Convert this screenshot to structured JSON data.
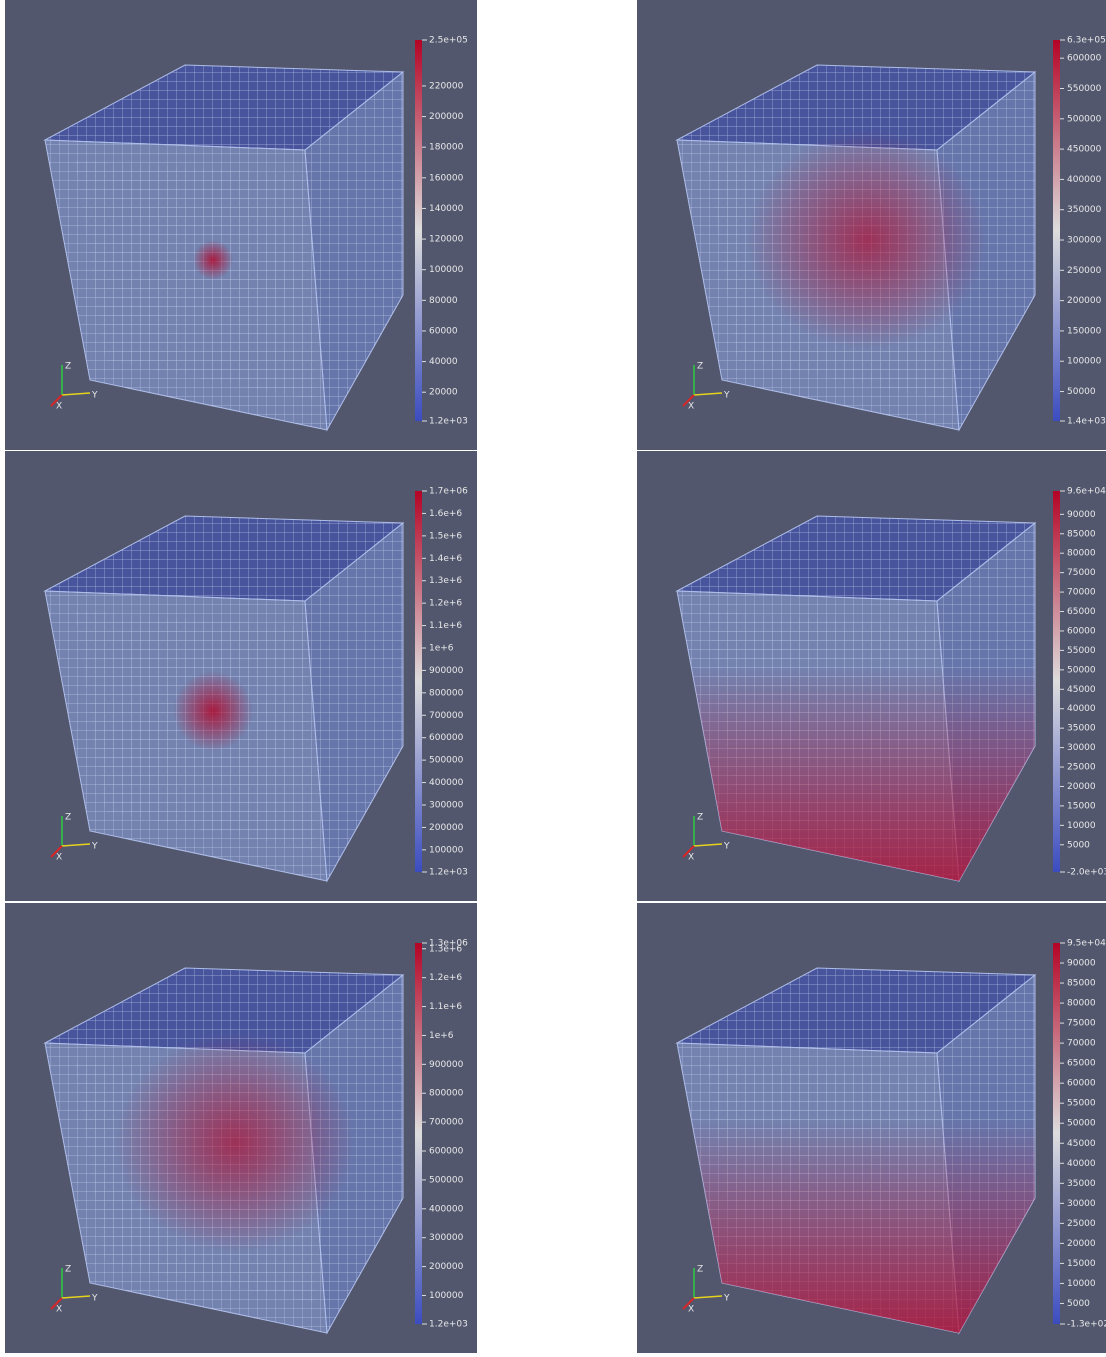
{
  "triad": {
    "x": "X",
    "y": "Y",
    "z": "Z"
  },
  "panels": [
    {
      "colorbar": {
        "min": {
          "value": 1200,
          "label": "1.2e+03"
        },
        "max": {
          "value": 250000,
          "label": "2.5e+05"
        },
        "ticks": [
          20000,
          40000,
          60000,
          80000,
          100000,
          120000,
          140000,
          160000,
          180000,
          200000,
          220000
        ]
      }
    },
    {
      "colorbar": {
        "min": {
          "value": 1400,
          "label": "1.4e+03"
        },
        "max": {
          "value": 630000,
          "label": "6.3e+05"
        },
        "ticks": [
          50000,
          100000,
          150000,
          200000,
          250000,
          300000,
          350000,
          400000,
          450000,
          500000,
          550000,
          600000
        ]
      }
    },
    {
      "colorbar": {
        "min": {
          "value": 1200,
          "label": "1.2e+03"
        },
        "max": {
          "value": 1700000,
          "label": "1.7e+06"
        },
        "ticks": [
          100000,
          200000,
          300000,
          400000,
          500000,
          600000,
          700000,
          800000,
          900000,
          {
            "value": 1000000,
            "label": "1e+6"
          },
          {
            "value": 1100000,
            "label": "1.1e+6"
          },
          {
            "value": 1200000,
            "label": "1.2e+6"
          },
          {
            "value": 1300000,
            "label": "1.3e+6"
          },
          {
            "value": 1400000,
            "label": "1.4e+6"
          },
          {
            "value": 1500000,
            "label": "1.5e+6"
          },
          {
            "value": 1600000,
            "label": "1.6e+6"
          }
        ]
      }
    },
    {
      "colorbar": {
        "min": {
          "value": -2000,
          "label": "-2.0e+03"
        },
        "max": {
          "value": 96000,
          "label": "9.6e+04"
        },
        "ticks": [
          5000,
          10000,
          15000,
          20000,
          25000,
          30000,
          35000,
          40000,
          45000,
          50000,
          55000,
          60000,
          65000,
          70000,
          75000,
          80000,
          85000,
          90000
        ]
      }
    },
    {
      "colorbar": {
        "min": {
          "value": 1200,
          "label": "1.2e+03"
        },
        "max": {
          "value": 1320000,
          "label": "1.3e+06"
        },
        "ticks": [
          100000,
          200000,
          300000,
          400000,
          500000,
          600000,
          700000,
          800000,
          900000,
          {
            "value": 1000000,
            "label": "1e+6"
          },
          {
            "value": 1100000,
            "label": "1.1e+6"
          },
          {
            "value": 1200000,
            "label": "1.2e+6"
          },
          {
            "value": 1300000,
            "label": "1.3e+6"
          }
        ]
      }
    },
    {
      "colorbar": {
        "min": {
          "value": -130,
          "label": "-1.3e+02"
        },
        "max": {
          "value": 95000,
          "label": "9.5e+04"
        },
        "ticks": [
          5000,
          10000,
          15000,
          20000,
          25000,
          30000,
          35000,
          40000,
          45000,
          50000,
          55000,
          60000,
          65000,
          70000,
          75000,
          80000,
          85000,
          90000
        ]
      }
    }
  ]
}
